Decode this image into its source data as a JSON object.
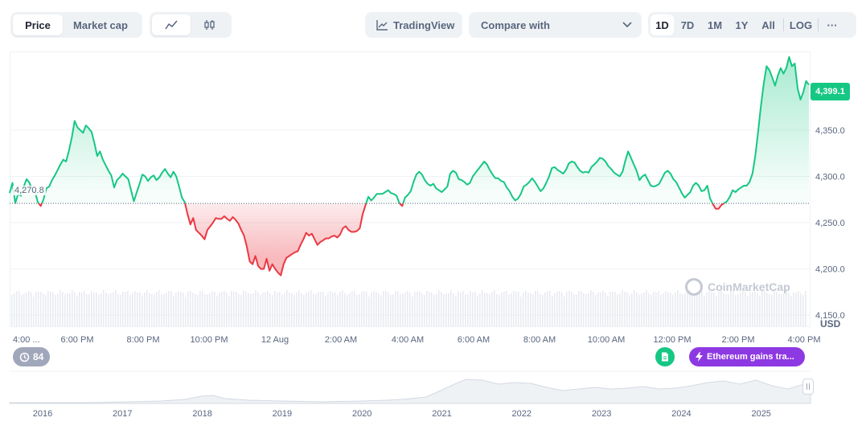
{
  "toolbar": {
    "metric_tabs": [
      "Price",
      "Market cap"
    ],
    "active_metric": "Price",
    "chart_types": [
      "line-chart-icon",
      "candlestick-icon"
    ],
    "tradingview_label": "TradingView",
    "compare_label": "Compare with",
    "ranges": [
      "1D",
      "7D",
      "1M",
      "1Y",
      "All"
    ],
    "active_range": "1D",
    "log_label": "LOG",
    "more_label": "···"
  },
  "chart_data": {
    "type": "area",
    "y_ticks": [
      "4,150.0",
      "4,200.0",
      "4,250.0",
      "4,300.0",
      "4,350.0"
    ],
    "y_range": [
      4138,
      4435
    ],
    "y_unit": "USD",
    "x_ticks": [
      "4:00 ...",
      "6:00 PM",
      "8:00 PM",
      "10:00 PM",
      "12 Aug",
      "2:00 AM",
      "4:00 AM",
      "6:00 AM",
      "8:00 AM",
      "10:00 AM",
      "12:00 PM",
      "2:00 PM",
      "4:00 PM"
    ],
    "open_price": 4270.8,
    "open_price_label": "4,270.8",
    "current_price_label": "4,399.1",
    "up_color": "#16c784",
    "down_color": "#ea3943",
    "series": [
      {
        "values": [
          4282,
          4293,
          4271,
          4281,
          4279,
          4289,
          4297,
          4293,
          4285,
          4283,
          4272,
          4268,
          4275,
          4287,
          4289,
          4296,
          4301,
          4307,
          4313,
          4318,
          4316,
          4328,
          4342,
          4360,
          4353,
          4350,
          4347,
          4355,
          4352,
          4348,
          4336,
          4322,
          4327,
          4318,
          4312,
          4306,
          4301,
          4288,
          4296,
          4299,
          4303,
          4300,
          4297,
          4285,
          4273,
          4283,
          4292,
          4302,
          4300,
          4295,
          4299,
          4301,
          4296,
          4299,
          4304,
          4308,
          4303,
          4299,
          4305,
          4300,
          4289,
          4277,
          4272,
          4259,
          4248,
          4255,
          4242,
          4239,
          4236,
          4232,
          4242,
          4246,
          4250,
          4255,
          4254,
          4254,
          4257,
          4254,
          4252,
          4256,
          4253,
          4249,
          4242,
          4236,
          4224,
          4208,
          4205,
          4214,
          4203,
          4200,
          4200,
          4211,
          4198,
          4205,
          4200,
          4196,
          4193,
          4205,
          4212,
          4214,
          4216,
          4218,
          4219,
          4226,
          4232,
          4239,
          4236,
          4238,
          4232,
          4226,
          4229,
          4231,
          4233,
          4233,
          4235,
          4236,
          4234,
          4237,
          4244,
          4246,
          4242,
          4240,
          4240,
          4241,
          4244,
          4259,
          4269,
          4278,
          4274,
          4277,
          4281,
          4281,
          4281,
          4283,
          4285,
          4282,
          4281,
          4279,
          4271,
          4268,
          4277,
          4280,
          4284,
          4294,
          4302,
          4305,
          4302,
          4296,
          4292,
          4290,
          4292,
          4287,
          4285,
          4283,
          4286,
          4289,
          4303,
          4306,
          4304,
          4297,
          4296,
          4294,
          4291,
          4293,
          4300,
          4304,
          4308,
          4312,
          4316,
          4313,
          4307,
          4302,
          4298,
          4298,
          4295,
          4294,
          4288,
          4284,
          4278,
          4274,
          4276,
          4281,
          4289,
          4291,
          4294,
          4298,
          4294,
          4289,
          4284,
          4287,
          4293,
          4300,
          4309,
          4310,
          4307,
          4305,
          4303,
          4307,
          4314,
          4316,
          4315,
          4310,
          4306,
          4304,
          4305,
          4304,
          4310,
          4313,
          4316,
          4320,
          4319,
          4316,
          4311,
          4308,
          4304,
          4302,
          4300,
          4305,
          4317,
          4327,
          4320,
          4313,
          4306,
          4296,
          4300,
          4302,
          4296,
          4290,
          4289,
          4290,
          4292,
          4298,
          4304,
          4306,
          4303,
          4297,
          4294,
          4288,
          4282,
          4277,
          4280,
          4283,
          4290,
          4293,
          4290,
          4284,
          4285,
          4290,
          4276,
          4270,
          4265,
          4265,
          4269,
          4271,
          4273,
          4278,
          4285,
          4283,
          4286,
          4288,
          4290,
          4290,
          4294,
          4303,
          4322,
          4348,
          4376,
          4400,
          4419,
          4415,
          4407,
          4398,
          4409,
          4417,
          4411,
          4417,
          4429,
          4419,
          4422,
          4395,
          4383,
          4391,
          4403,
          4399
        ]
      }
    ]
  },
  "overview": {
    "years": [
      "2016",
      "2017",
      "2018",
      "2019",
      "2020",
      "2021",
      "2022",
      "2023",
      "2024",
      "2025"
    ]
  },
  "events": {
    "badge_count": "84",
    "event_label": "Ethereum gains tra..."
  },
  "watermark": "CoinMarketCap"
}
